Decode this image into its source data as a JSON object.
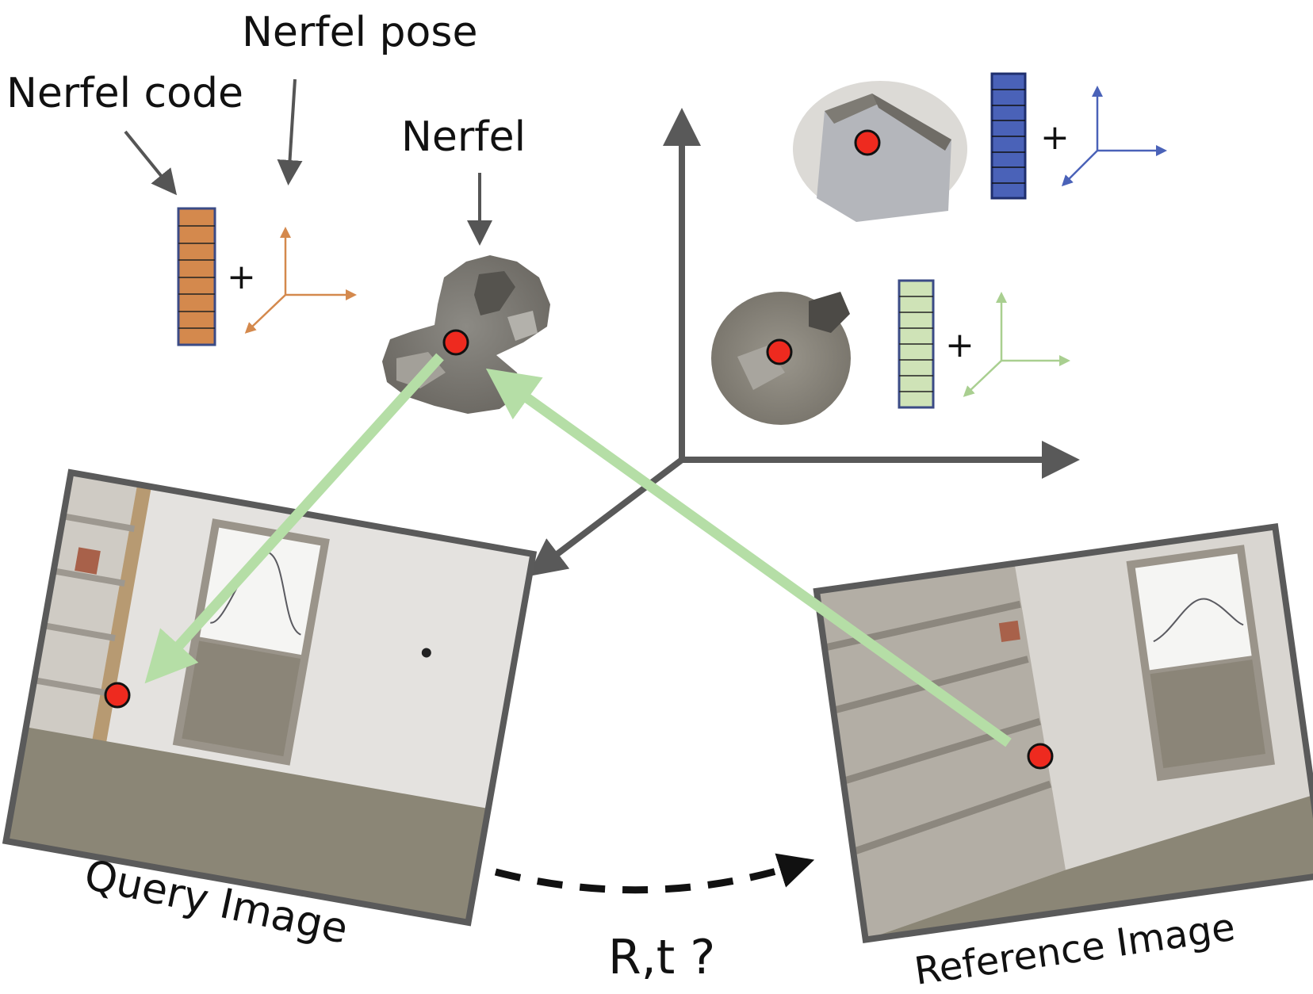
{
  "labels": {
    "nerfel_pose": "Nerfel pose",
    "nerfel_code": "Nerfel code",
    "nerfel": "Nerfel",
    "query_image": "Query Image",
    "reference_image": "Reference Image",
    "relative_pose": "R,t ?",
    "plus": "+"
  },
  "colors": {
    "axis": "#595959",
    "ray": "#b5dea6",
    "keypoint": "#ee2a1f",
    "frame": "#5a5a5a",
    "orange": "#d4894d",
    "blue": "#4a62b8",
    "green": "#a9cf90",
    "code_border": "#3b4b86",
    "wall": "#e6e4e2",
    "carpet": "#8b8676"
  },
  "icons": {
    "keypoint": "red-dot-icon",
    "pose": "coordinate-frame-icon",
    "code": "feature-vector-icon"
  }
}
